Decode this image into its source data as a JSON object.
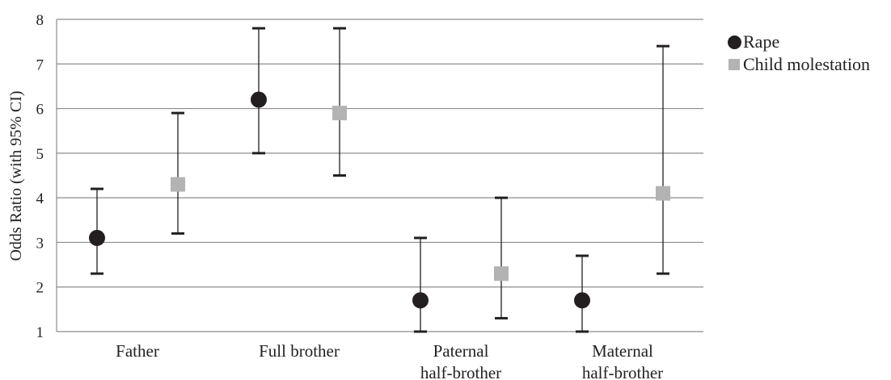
{
  "chart_data": {
    "type": "scatter",
    "categories": [
      "Father",
      "Full brother",
      "Paternal\nhalf-brother",
      "Maternal\nhalf-brother"
    ],
    "ylabel": "Odds Ratio (with 95% CI)",
    "xlabel": "",
    "ylim": [
      1,
      8
    ],
    "yticks": [
      1,
      2,
      3,
      4,
      5,
      6,
      7,
      8
    ],
    "grid": true,
    "legend_position": "top-right",
    "series": [
      {
        "name": "Rape",
        "marker": "circle",
        "color": "#231f20",
        "values": [
          3.1,
          6.2,
          1.7,
          1.7
        ],
        "ci_low": [
          2.3,
          5.0,
          1.0,
          1.0
        ],
        "ci_high": [
          4.2,
          7.8,
          3.1,
          2.7
        ]
      },
      {
        "name": "Child molestation",
        "marker": "square",
        "color": "#b3b3b3",
        "values": [
          4.3,
          5.9,
          2.3,
          4.1
        ],
        "ci_low": [
          3.2,
          4.5,
          1.3,
          2.3
        ],
        "ci_high": [
          5.9,
          7.8,
          4.0,
          7.4
        ]
      }
    ]
  },
  "colors": {
    "grid": "#8c8c8c",
    "axis": "#8c8c8c",
    "errorbar": "#231f20"
  }
}
